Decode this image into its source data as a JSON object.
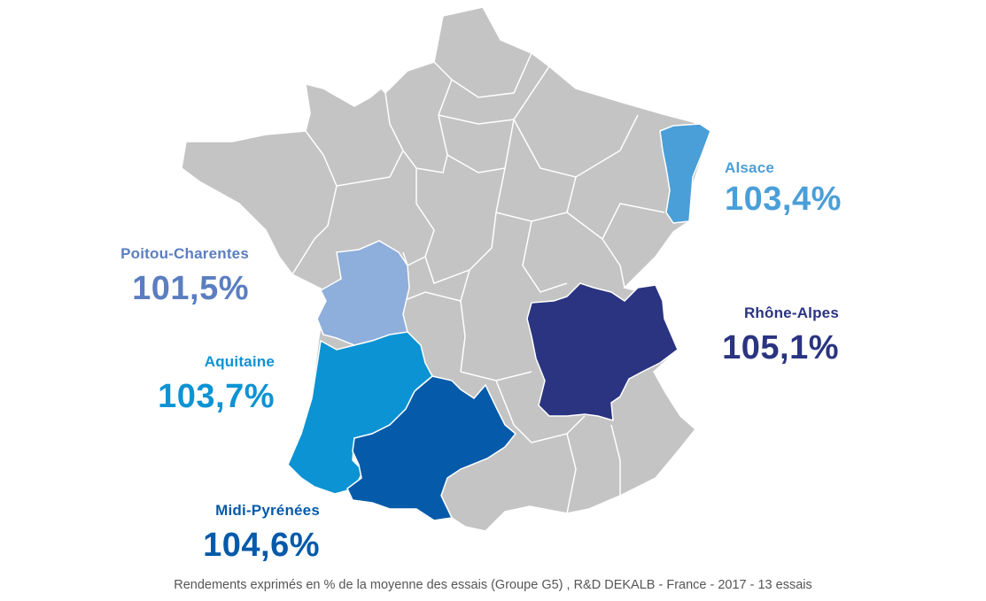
{
  "colors": {
    "base": "#c4c4c4",
    "border": "#ffffff",
    "alsace": "#4a9fd8",
    "poitou": "#8eaedc",
    "aquitaine": "#0c93d4",
    "midi": "#055aa9",
    "rhone": "#2a3480",
    "poitou_text": "#5b7ec1"
  },
  "regions": {
    "alsace": {
      "name": "Alsace",
      "value": "103,4%"
    },
    "poitou": {
      "name": "Poitou-Charentes",
      "value": "101,5%"
    },
    "aquitaine": {
      "name": "Aquitaine",
      "value": "103,7%"
    },
    "midi": {
      "name": "Midi-Pyrénées",
      "value": "104,6%"
    },
    "rhone": {
      "name": "Rhône-Alpes",
      "value": "105,1%"
    }
  },
  "footer": "Rendements exprimés en % de la moyenne des essais (Groupe G5) , R&D DEKALB - France - 2017 - 13 essais"
}
